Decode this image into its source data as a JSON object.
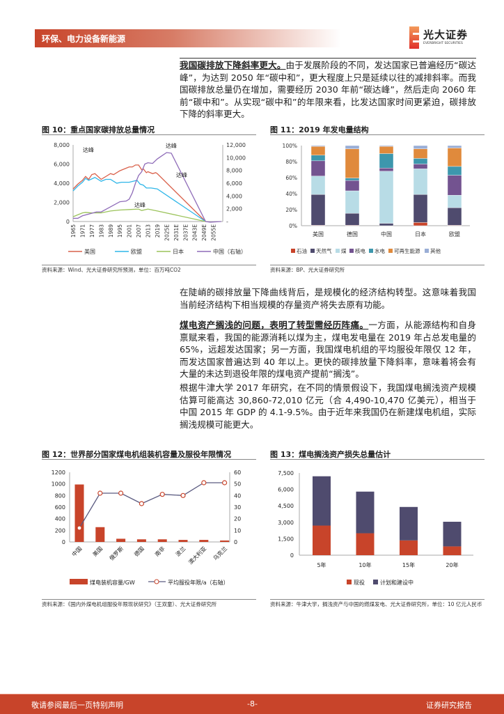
{
  "header": {
    "section": "环保、电力设备新能源",
    "logo_cn": "光大证券",
    "logo_en": "EVERBRIGHT SECURITIES"
  },
  "paragraphs": [
    {
      "lead": "我国碳排放下降斜率更大。",
      "text": "由于发展阶段的不同，发达国家已普遍经历“碳达峰”，为达到 2050 年“碳中和”，更大程度上只是延续以往的减排斜率。而我国碳排放总量仍在增加，需要经历 2030 年前“碳达峰”，然后走向 2060 年前“碳中和”。从实现“碳中和”的年限来看，比发达国家时间更紧迫，碳排放下降的斜率更大。"
    },
    {
      "lead": "",
      "text": "在陡峭的碳排放量下降曲线背后，是规模化的经济结构转型。这意味着我国当前经济结构下相当规模的存量资产将失去原有功能。"
    },
    {
      "lead": "煤电资产搁浅的问题，表明了转型需经历阵痛。",
      "text": "一方面，从能源结构和自身禀赋来看，我国的能源消耗以煤为主，煤电发电量在 2019 年占总发电量的 65%，远超发达国家；另一方面，我国煤电机组的平均服役年限仅 12 年，而发达国家普遍达到 40 年以上。更快的碳排放量下降斜率，意味着将会有大量的未达到退役年限的煤电资产提前“搁浅”。"
    },
    {
      "lead": "",
      "text": "根据牛津大学 2017 年研究，在不同的情景假设下，我国煤电搁浅资产规模估算可能高达 30,860-72,010 亿元（合 4,490-10,470 亿美元），相当于中国 2015 年 GDP 的 4.1-9.5%。由于近年来我国仍在新建煤电机组，实际搁浅规模可能更大。"
    }
  ],
  "figures": {
    "fig10": {
      "title": "图 10：重点国家碳排放总量情况",
      "source": "资料来源：Wind、光大证券研究所预测，单位：百万吨CO2"
    },
    "fig11": {
      "title": "图 11：2019 年发电量结构",
      "source": "资料来源：BP、光大证券研究所"
    },
    "fig12": {
      "title": "图 12：世界部分国家煤电机组装机容量及服役年限情况",
      "source": "资料来源：《国内外煤电机组服役年限现状研究》（王双童）、光大证券研究所"
    },
    "fig13": {
      "title": "图 13：煤电搁浅资产损失总量估计",
      "source": "资料来源：牛津大学，搁浅资产与中国的燃煤发电、光大证券研究所，单位：10 亿元人民币"
    }
  },
  "chart_data": [
    {
      "type": "line",
      "x_ticks": [
        "1965",
        "1971",
        "1977",
        "1983",
        "1989",
        "1995",
        "2001",
        "2007",
        "2013",
        "2019",
        "2025E",
        "2031E",
        "2037E",
        "2043E",
        "2049E",
        "2055E"
      ],
      "ylim": [
        0,
        8000
      ],
      "y_ticks": [
        "0",
        "2,000",
        "4,000",
        "6,000",
        "8,000"
      ],
      "y2lim": [
        0,
        12000
      ],
      "y2_ticks": [
        "-",
        "2,000",
        "4,000",
        "6,000",
        "8,000",
        "10,000",
        "12,000"
      ],
      "legend_position": "bottom",
      "annotation": "达峰",
      "series": [
        {
          "name": "美国",
          "color": "#d9604a",
          "axis": "left",
          "points": [
            [
              1965,
              3400
            ],
            [
              1968,
              3900
            ],
            [
              1971,
              4300
            ],
            [
              1973,
              4700
            ],
            [
              1975,
              4400
            ],
            [
              1977,
              4900
            ],
            [
              1979,
              5000
            ],
            [
              1983,
              4400
            ],
            [
              1986,
              4700
            ],
            [
              1989,
              5000
            ],
            [
              1991,
              4900
            ],
            [
              1995,
              5300
            ],
            [
              1998,
              5500
            ],
            [
              2001,
              5700
            ],
            [
              2003,
              5700
            ],
            [
              2005,
              5900
            ],
            [
              2007,
              5900
            ],
            [
              2009,
              5400
            ],
            [
              2010,
              5500
            ],
            [
              2012,
              5100
            ],
            [
              2013,
              5200
            ],
            [
              2016,
              5000
            ],
            [
              2018,
              5100
            ],
            [
              2019,
              5000
            ],
            [
              2050,
              0
            ]
          ]
        },
        {
          "name": "欧盟",
          "color": "#2eb6e8",
          "axis": "left",
          "points": [
            [
              1965,
              3200
            ],
            [
              1968,
              3700
            ],
            [
              1971,
              4100
            ],
            [
              1973,
              4500
            ],
            [
              1975,
              4300
            ],
            [
              1979,
              4600
            ],
            [
              1983,
              4200
            ],
            [
              1986,
              4400
            ],
            [
              1989,
              4400
            ],
            [
              1993,
              4000
            ],
            [
              1996,
              4100
            ],
            [
              2001,
              4100
            ],
            [
              2006,
              4300
            ],
            [
              2008,
              3900
            ],
            [
              2010,
              3800
            ],
            [
              2012,
              3500
            ],
            [
              2015,
              3500
            ],
            [
              2019,
              3400
            ],
            [
              2050,
              0
            ]
          ]
        },
        {
          "name": "日本",
          "color": "#9bc35a",
          "axis": "left",
          "points": [
            [
              1965,
              500
            ],
            [
              1968,
              700
            ],
            [
              1971,
              900
            ],
            [
              1973,
              950
            ],
            [
              1977,
              900
            ],
            [
              1983,
              900
            ],
            [
              1989,
              1100
            ],
            [
              1995,
              1200
            ],
            [
              2001,
              1250
            ],
            [
              2007,
              1300
            ],
            [
              2009,
              1150
            ],
            [
              2013,
              1300
            ],
            [
              2019,
              1100
            ],
            [
              2050,
              0
            ]
          ]
        },
        {
          "name": "中国（右轴）",
          "color": "#8e6bb8",
          "axis": "right",
          "points": [
            [
              1965,
              500
            ],
            [
              1968,
              500
            ],
            [
              1971,
              900
            ],
            [
              1977,
              1300
            ],
            [
              1980,
              1500
            ],
            [
              1983,
              1500
            ],
            [
              1989,
              2300
            ],
            [
              1995,
              3100
            ],
            [
              1999,
              3200
            ],
            [
              2001,
              3500
            ],
            [
              2003,
              4500
            ],
            [
              2005,
              6000
            ],
            [
              2007,
              7200
            ],
            [
              2009,
              7800
            ],
            [
              2011,
              9000
            ],
            [
              2013,
              9200
            ],
            [
              2016,
              9100
            ],
            [
              2019,
              9800
            ],
            [
              2022,
              10300
            ],
            [
              2025,
              10800
            ],
            [
              2028,
              10700
            ],
            [
              2050,
              0
            ],
            [
              2053,
              -100
            ],
            [
              2060,
              0
            ]
          ]
        }
      ]
    },
    {
      "type": "bar",
      "stacked": true,
      "categories": [
        "美国",
        "德国",
        "中国",
        "日本",
        "欧盟"
      ],
      "ylim": [
        0,
        100
      ],
      "y_ticks": [
        "0%",
        "20%",
        "40%",
        "60%",
        "80%",
        "100%"
      ],
      "legend_position": "bottom",
      "series": [
        {
          "name": "石油",
          "color": "#c8442a",
          "values": [
            0.5,
            0.5,
            0,
            4,
            0.5
          ]
        },
        {
          "name": "天然气",
          "color": "#4f4b6e",
          "values": [
            38.5,
            15,
            3,
            35,
            22
          ]
        },
        {
          "name": "煤",
          "color": "#b8dce6",
          "values": [
            23,
            28,
            65,
            32,
            15.5
          ]
        },
        {
          "name": "核电",
          "color": "#735390",
          "values": [
            19,
            13,
            4,
            6,
            25
          ]
        },
        {
          "name": "水电",
          "color": "#3d97ad",
          "values": [
            7,
            3,
            18,
            7,
            11
          ]
        },
        {
          "name": "可再生能源",
          "color": "#e08a3c",
          "values": [
            11,
            36.5,
            9,
            12,
            23
          ]
        },
        {
          "name": "其他",
          "color": "#9aaed6",
          "values": [
            1,
            4,
            1,
            4,
            3
          ]
        }
      ]
    },
    {
      "type": "bar",
      "categories": [
        "中国",
        "美国",
        "俄罗斯",
        "德国",
        "南非",
        "波兰",
        "澳大利亚",
        "乌克兰"
      ],
      "ylim": [
        0,
        1200
      ],
      "y_ticks": [
        "0",
        "200",
        "400",
        "600",
        "800",
        "1000",
        "1200"
      ],
      "y2lim": [
        0,
        60
      ],
      "y2_ticks": [
        "0",
        "10",
        "20",
        "30",
        "40",
        "50",
        "60"
      ],
      "legend_position": "bottom",
      "series": [
        {
          "name": "煤电装机容量/GW",
          "type": "bar",
          "color": "#c8442a",
          "values": [
            990,
            255,
            55,
            45,
            45,
            35,
            35,
            25
          ]
        },
        {
          "name": "平均服役年限/a（右轴）",
          "type": "line",
          "axis": "right",
          "color": "#5a5a80",
          "marker_color": "#c8442a",
          "values": [
            12,
            42,
            42,
            33,
            41,
            40,
            51,
            51
          ]
        }
      ]
    },
    {
      "type": "bar",
      "stacked": true,
      "categories": [
        "5年",
        "10年",
        "15年",
        "20年"
      ],
      "ylim": [
        0,
        7500
      ],
      "y_ticks": [
        "0",
        "1,500",
        "3,000",
        "4,500",
        "6,000",
        "7,500"
      ],
      "legend_position": "bottom",
      "series": [
        {
          "name": "现役",
          "color": "#c8442a",
          "values": [
            2700,
            2000,
            1350,
            800
          ]
        },
        {
          "name": "计划和建设中",
          "color": "#4f4b6e",
          "values": [
            4500,
            3800,
            3050,
            2250
          ]
        }
      ]
    }
  ],
  "footer": {
    "left": "敬请参阅最后一页特别声明",
    "page": "-8-",
    "right": "证券研究报告"
  }
}
